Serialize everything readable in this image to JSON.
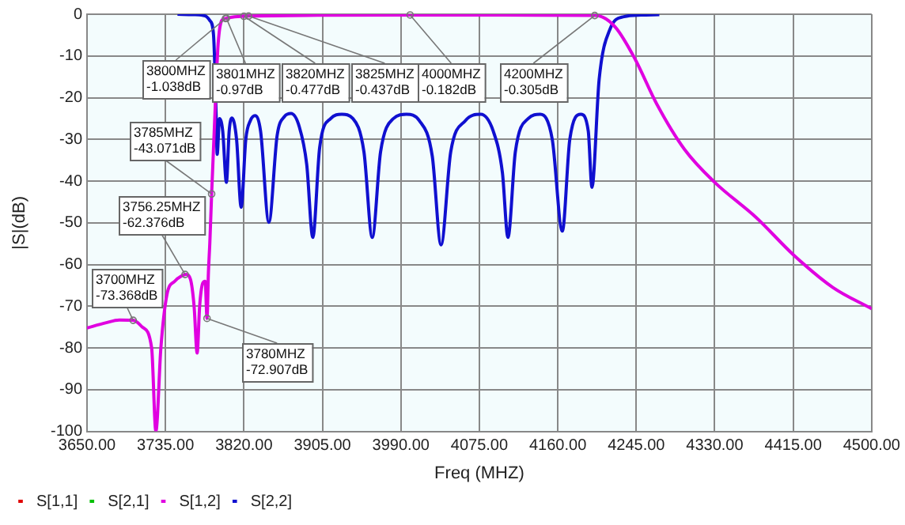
{
  "chart_data": {
    "type": "line",
    "xlabel": "Freq (MHZ)",
    "ylabel": "|S|(dB)",
    "xlim": [
      3650,
      4500
    ],
    "xticks": [
      {
        "value": 3650,
        "label": "3650.00"
      },
      {
        "value": 3735,
        "label": "3735.00"
      },
      {
        "value": 3820,
        "label": "3820.00"
      },
      {
        "value": 3905,
        "label": "3905.00"
      },
      {
        "value": 3990,
        "label": "3990.00"
      },
      {
        "value": 4075,
        "label": "4075.00"
      },
      {
        "value": 4160,
        "label": "4160.00"
      },
      {
        "value": 4245,
        "label": "4245.00"
      },
      {
        "value": 4330,
        "label": "4330.00"
      },
      {
        "value": 4415,
        "label": "4415.00"
      },
      {
        "value": 4500,
        "label": "4500.00"
      }
    ],
    "ylim": [
      -100,
      0
    ],
    "yticks": [
      0,
      -10,
      -20,
      -30,
      -40,
      -50,
      -60,
      -70,
      -80,
      -90,
      -100
    ],
    "grid": true,
    "legend": "bottom left",
    "marker": "none",
    "line_style": "solid",
    "series": [
      {
        "name": "S[1,1]",
        "color": "#e00000",
        "values": [
          null
        ]
      },
      {
        "name": "S[2,1]",
        "color": "#00c000",
        "values": [
          null
        ]
      },
      {
        "name": "S[1,2]",
        "color": "#e000e0",
        "x": [
          3650,
          3670,
          3685,
          3700,
          3710,
          3720,
          3724.6,
          3730,
          3736.5,
          3745,
          3752,
          3757.4,
          3762,
          3766,
          3769.3,
          3772,
          3775.3,
          3778,
          3780,
          3781.5,
          3783,
          3785,
          3789,
          3792,
          3797,
          3800,
          3801,
          3810,
          3820,
          3825,
          3900,
          4000,
          4100,
          4200,
          4204.8,
          4222.7,
          4243.6,
          4267.4,
          4297.3,
          4330,
          4374.8,
          4415.4,
          4458,
          4500
        ],
        "values": [
          -75.2,
          -74,
          -73.3,
          -73.368,
          -75,
          -80,
          -100,
          -80,
          -67.3,
          -64,
          -62.8,
          -62.376,
          -63.5,
          -70,
          -81.2,
          -70,
          -64.5,
          -64,
          -72.907,
          -62,
          -55,
          -43.071,
          -21.6,
          -7.2,
          -1.2,
          -1.038,
          -0.97,
          -0.6,
          -0.477,
          -0.437,
          -0.25,
          -0.182,
          -0.2,
          -0.305,
          -0.4,
          -3.2,
          -10.7,
          -21.6,
          -32.4,
          -40.3,
          -48.7,
          -57.7,
          -65.5,
          -70.6
        ]
      },
      {
        "name": "S[2,2]",
        "color": "#1010d0",
        "x": [
          3748,
          3765,
          3778,
          3783,
          3787,
          3790,
          3791,
          3793.5,
          3797,
          3801,
          3804,
          3807,
          3812,
          3817,
          3822,
          3827,
          3832,
          3838,
          3847,
          3856,
          3864,
          3871,
          3880,
          3888,
          3894.6,
          3902,
          3914,
          3926,
          3938,
          3950,
          3959,
          3968,
          3982,
          3996,
          4010,
          4024,
          4033.5,
          4044,
          4060,
          4076.5,
          4090,
          4100,
          4106,
          4114,
          4128,
          4141,
          4154,
          4164.9,
          4173,
          4185,
          4193,
          4197,
          4204.8,
          4216.7,
          4231.6,
          4250,
          4270
        ],
        "values": [
          0,
          -0.1,
          -0.4,
          -1.5,
          -4.8,
          -25.2,
          -33.6,
          -25,
          -28,
          -40.3,
          -28,
          -24.9,
          -30,
          -46.3,
          -30,
          -25.5,
          -24.3,
          -28,
          -49.9,
          -29,
          -24.5,
          -23.8,
          -27,
          -36,
          -53.5,
          -32,
          -25,
          -24,
          -25,
          -33,
          -53.5,
          -33,
          -25,
          -24,
          -25.5,
          -34,
          -55.3,
          -33,
          -25.5,
          -24,
          -28,
          -38,
          -53.5,
          -33,
          -25,
          -24,
          -30,
          -52,
          -30,
          -24,
          -28,
          -41.5,
          -15.6,
          -3.5,
          -0.6,
          -0.2,
          -0.1
        ]
      }
    ],
    "annotations": [
      {
        "text": "3800MHZ\n-1.038dB",
        "x": 3800,
        "y": -1.038
      },
      {
        "text": "3801MHZ\n-0.97dB",
        "x": 3801,
        "y": -0.97
      },
      {
        "text": "3820MHZ\n-0.477dB",
        "x": 3820,
        "y": -0.477
      },
      {
        "text": "3825MHZ\n-0.437dB",
        "x": 3825,
        "y": -0.437
      },
      {
        "text": "4000MHZ\n-0.182dB",
        "x": 4000,
        "y": -0.182
      },
      {
        "text": "4200MHZ\n-0.305dB",
        "x": 4200,
        "y": -0.305
      },
      {
        "text": "3785MHZ\n-43.071dB",
        "x": 3785,
        "y": -43.071
      },
      {
        "text": "3756.25MHZ\n-62.376dB",
        "x": 3756.25,
        "y": -62.376
      },
      {
        "text": "3700MHZ\n-73.368dB",
        "x": 3700,
        "y": -73.368
      },
      {
        "text": "3780MHZ\n-72.907dB",
        "x": 3780,
        "y": -72.907
      }
    ]
  }
}
